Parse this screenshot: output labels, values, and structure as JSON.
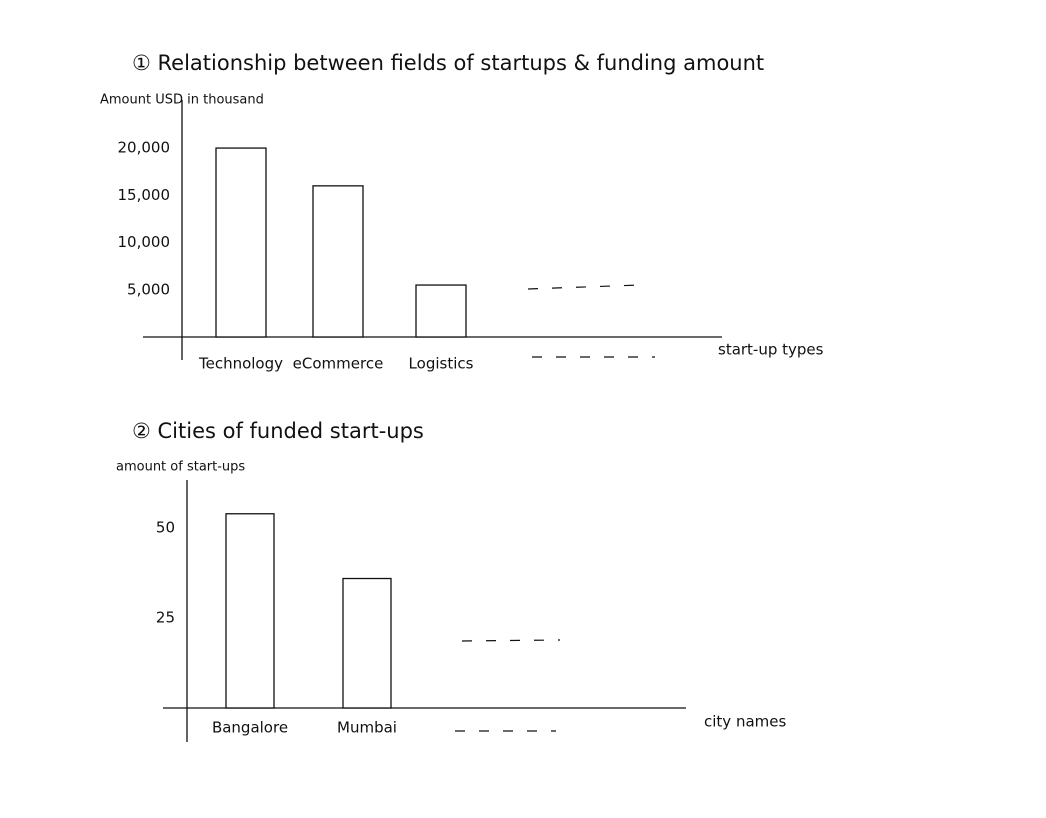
{
  "chart_data": [
    {
      "type": "bar",
      "title": "① Relationship between fields of startups & funding amount",
      "y_label": "Amount USD in thousand",
      "x_label": "start-up types",
      "categories": [
        "Technology",
        "eCommerce",
        "Logistics"
      ],
      "values": [
        20000,
        16000,
        5500
      ],
      "color": "#ffffff",
      "ylim": [
        0,
        23500
      ],
      "yticks": [
        {
          "value": 5000,
          "label": "5,000"
        },
        {
          "value": 10000,
          "label": "10,000"
        },
        {
          "value": 15000,
          "label": "15,000"
        },
        {
          "value": 20000,
          "label": "20,000"
        }
      ],
      "grid": false
    },
    {
      "type": "bar",
      "title": "② Cities of funded start-ups",
      "y_label": "amount of start-ups",
      "x_label": "city names",
      "categories": [
        "Bangalore",
        "Mumbai"
      ],
      "values": [
        54,
        36
      ],
      "color": "#ffffff",
      "ylim": [
        0,
        62
      ],
      "yticks": [
        25,
        50
      ],
      "grid": false
    }
  ]
}
